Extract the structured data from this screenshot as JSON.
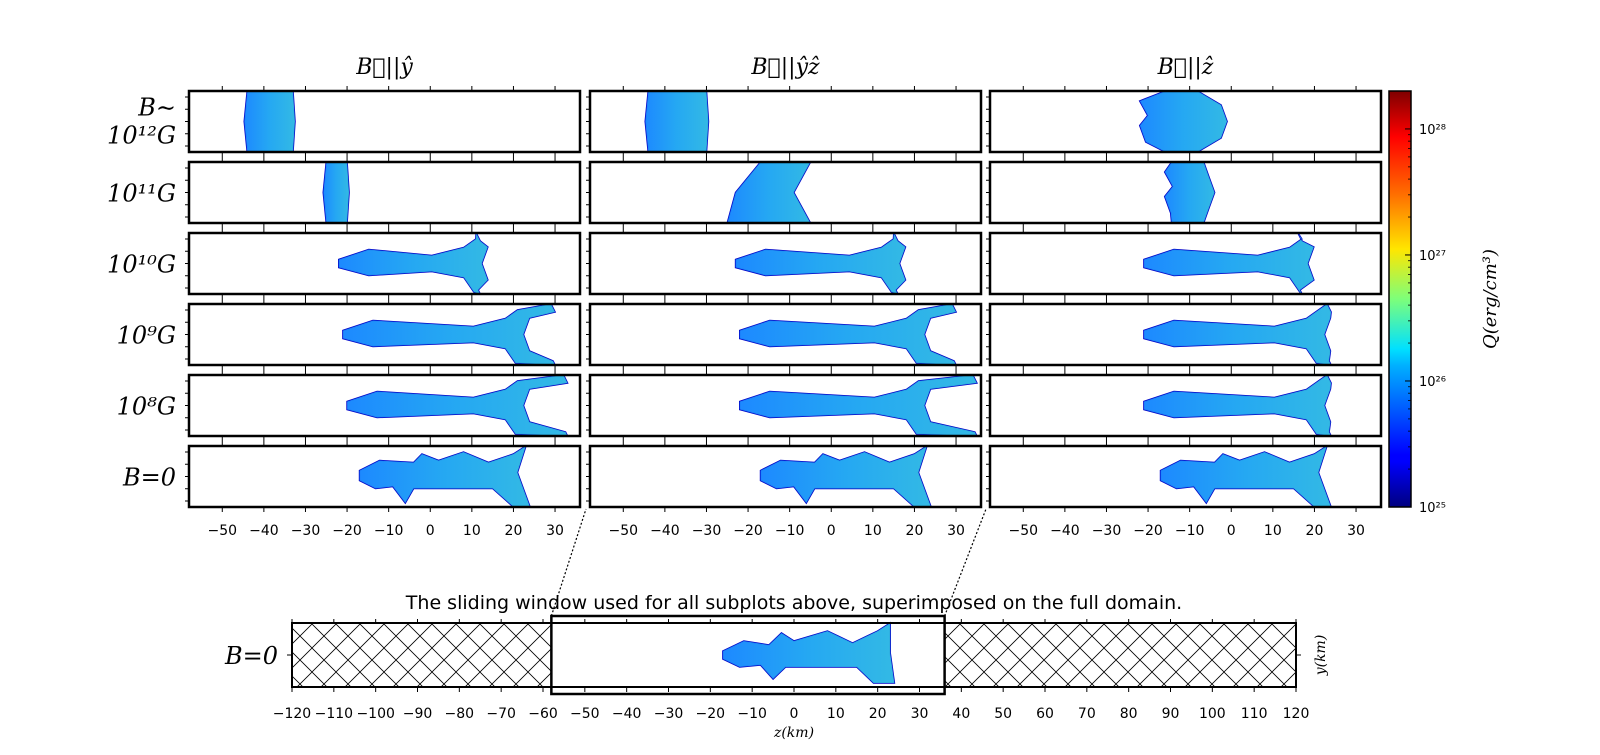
{
  "chart_data": {
    "type": "heatmap",
    "columns": [
      {
        "title": "B⃗||ŷ"
      },
      {
        "title": "B⃗||ŷẑ"
      },
      {
        "title": "B⃗||ẑ"
      }
    ],
    "rows": [
      {
        "label_line1": "B∼",
        "label_line2": "10¹²G",
        "label": "B∼10¹²G"
      },
      {
        "label": "10¹¹G"
      },
      {
        "label": "10¹⁰G"
      },
      {
        "label": "10⁹G"
      },
      {
        "label": "10⁸G"
      },
      {
        "label": "B=0"
      }
    ],
    "x_ticks": [
      "−50",
      "−40",
      "−30",
      "−20",
      "−10",
      "0",
      "10",
      "20",
      "30"
    ],
    "x_tick_values": [
      -50,
      -40,
      -30,
      -20,
      -10,
      0,
      10,
      20,
      30
    ],
    "xlim": [
      -58,
      36
    ],
    "colorbar": {
      "label": "Q(erg/cm³)",
      "scale": "log",
      "range": [
        1e+25,
        2e+28
      ],
      "ticks": [
        {
          "value": 1e+25,
          "label": "10²⁵"
        },
        {
          "value": 1e+26,
          "label": "10²⁶"
        },
        {
          "value": 1e+27,
          "label": "10²⁷"
        },
        {
          "value": 1e+28,
          "label": "10²⁸"
        }
      ],
      "colormap": "jet"
    },
    "bottom_panel": {
      "title": "The sliding window used for all subplots above, superimposed on the full domain.",
      "row_label": "B=0",
      "xlabel": "z(km)",
      "ylabel": "y(km)",
      "xlim": [
        -120,
        120
      ],
      "window": [
        -58,
        36
      ],
      "x_ticks": [
        "−120",
        "−110",
        "−100",
        "−90",
        "−80",
        "−70",
        "−60",
        "−50",
        "−40",
        "−30",
        "−20",
        "−10",
        "0",
        "10",
        "20",
        "30",
        "40",
        "50",
        "60",
        "70",
        "80",
        "90",
        "100",
        "110",
        "120"
      ],
      "x_tick_values": [
        -120,
        -110,
        -100,
        -90,
        -80,
        -70,
        -60,
        -50,
        -40,
        -30,
        -20,
        -10,
        0,
        10,
        20,
        30,
        40,
        50,
        60,
        70,
        80,
        90,
        100,
        110,
        120
      ]
    },
    "grid": false
  }
}
